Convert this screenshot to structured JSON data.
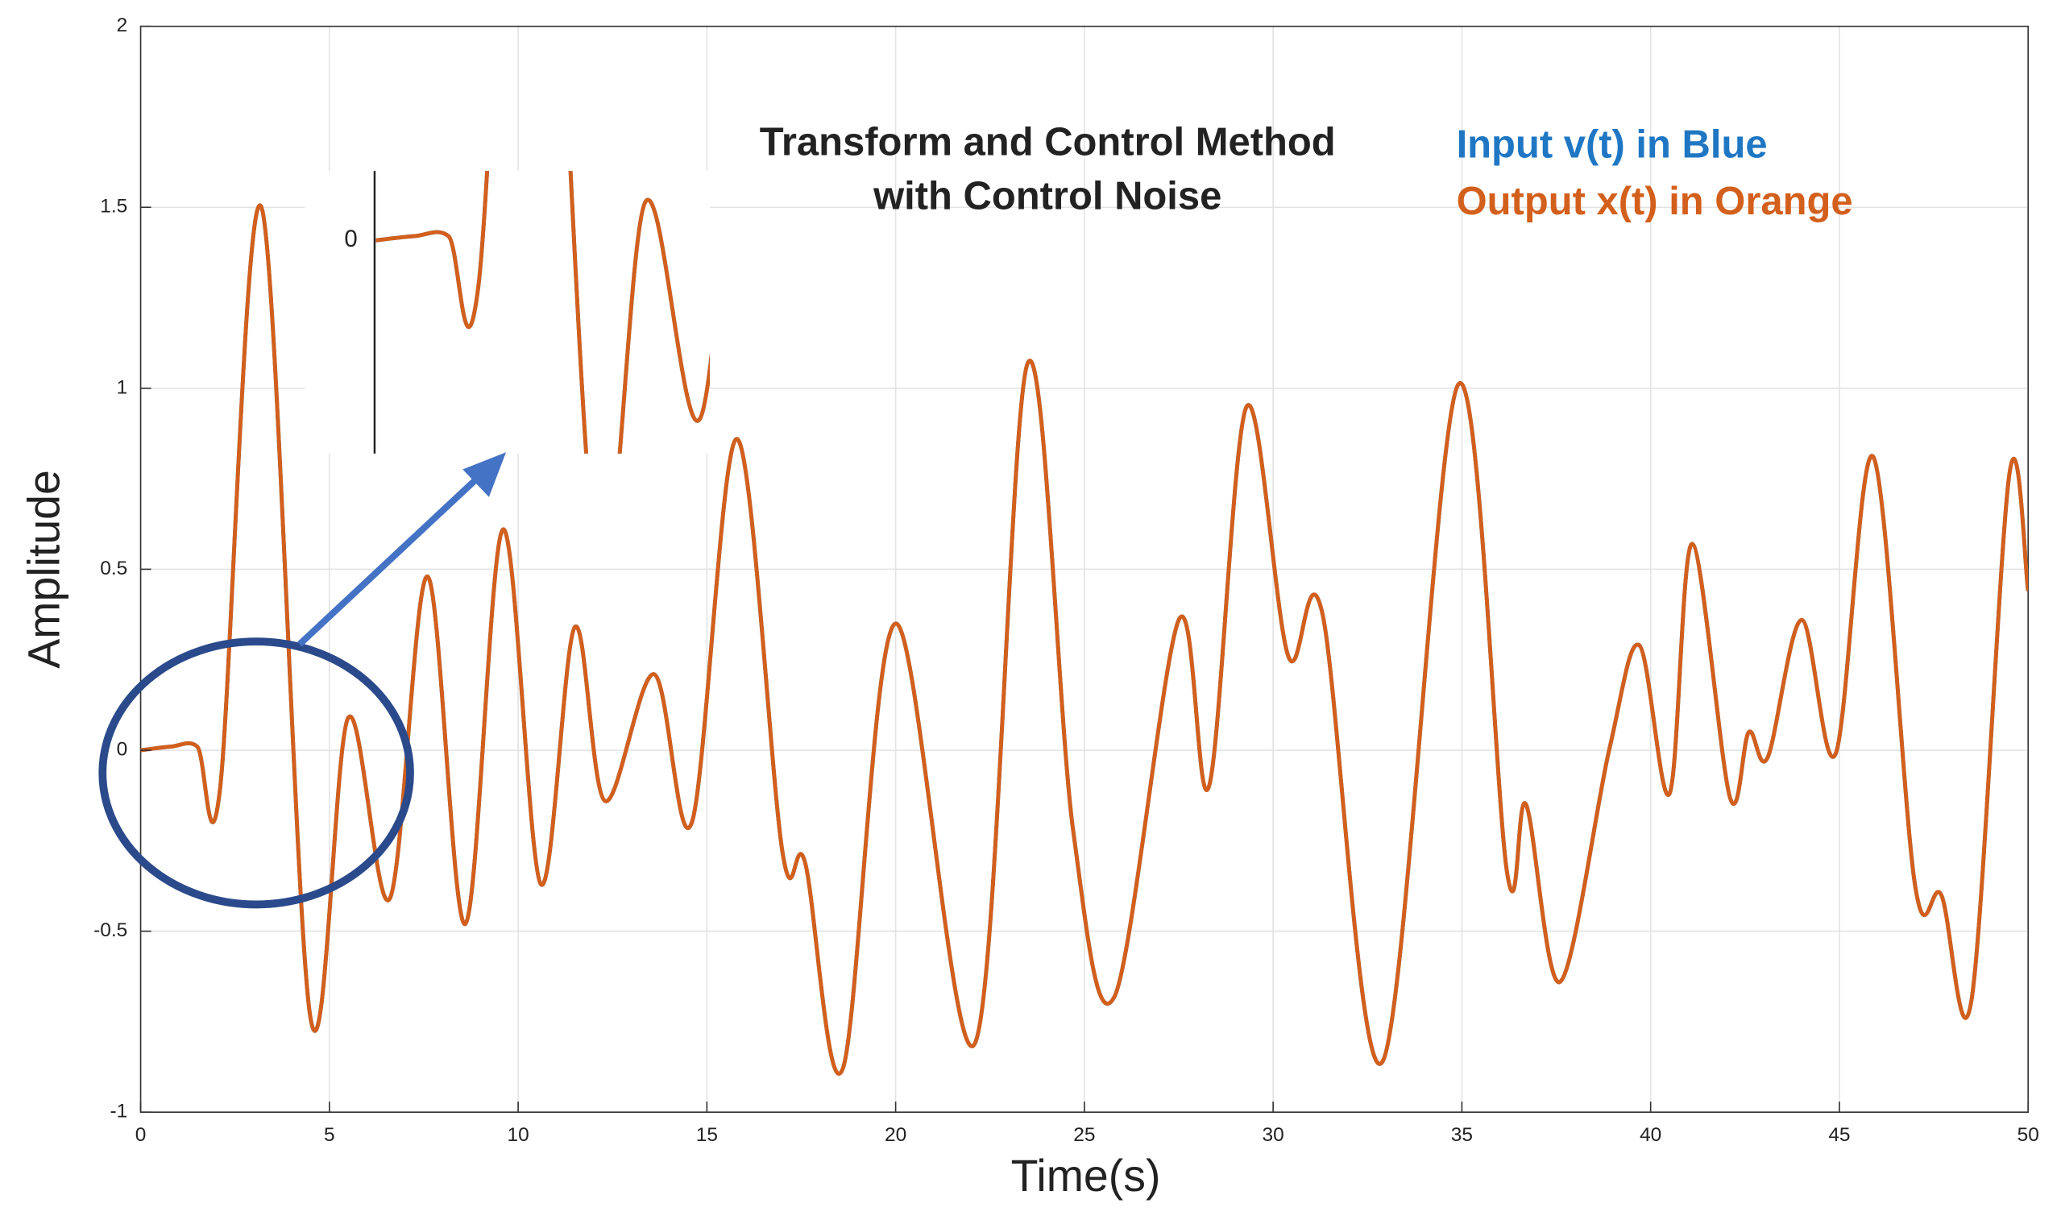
{
  "chart_data": {
    "type": "line",
    "title": [
      "Transform and Control Method",
      "with Control Noise"
    ],
    "x_label": "Time(s)",
    "y_label": "Amplitude",
    "xlim": [
      0,
      50
    ],
    "ylim": [
      -1,
      2
    ],
    "xticks": [
      0,
      5,
      10,
      15,
      20,
      25,
      30,
      35,
      40,
      45,
      50
    ],
    "yticks": [
      -1,
      -0.5,
      0,
      0.5,
      1,
      1.5,
      2
    ],
    "grid": true,
    "x": [
      0,
      0.8,
      1.5,
      2.1,
      3.2,
      4.5,
      5.5,
      6.6,
      7.6,
      8.6,
      9.6,
      10.6,
      11.5,
      12.3,
      13.6,
      14.6,
      15.8,
      17.0,
      17.6,
      18.6,
      20.0,
      22.1,
      23.5,
      24.7,
      25.8,
      27.5,
      28.3,
      29.3,
      30.4,
      31.3,
      32.9,
      34.9,
      36.2,
      36.7,
      37.6,
      38.9,
      39.7,
      40.5,
      41.1,
      42.1,
      42.6,
      43.1,
      44.0,
      44.9,
      45.9,
      47.0,
      47.7,
      48.5,
      49.5,
      50
    ],
    "series": [
      {
        "name": "Input v(t) in Blue",
        "color": "#1f77c4",
        "values": [
          0,
          0.01,
          0.01,
          -0.11,
          1.5,
          -0.74,
          0.09,
          -0.41,
          0.48,
          -0.48,
          0.61,
          -0.37,
          0.34,
          -0.14,
          0.21,
          -0.2,
          0.86,
          -0.28,
          -0.31,
          -0.88,
          0.35,
          -0.81,
          1.07,
          -0.22,
          -0.68,
          0.36,
          -0.1,
          0.95,
          0.26,
          0.38,
          -0.86,
          1.01,
          -0.34,
          -0.15,
          -0.64,
          0.0,
          0.29,
          -0.12,
          0.57,
          -0.13,
          0.05,
          -0.02,
          0.36,
          -0.01,
          0.81,
          -0.37,
          -0.4,
          -0.69,
          0.76,
          0.44
        ]
      },
      {
        "name": "Output x(t) in Orange",
        "color": "#d35f1c",
        "values": [
          0,
          0.01,
          0.01,
          -0.11,
          1.5,
          -0.74,
          0.09,
          -0.41,
          0.48,
          -0.48,
          0.61,
          -0.37,
          0.34,
          -0.14,
          0.21,
          -0.2,
          0.86,
          -0.28,
          -0.31,
          -0.88,
          0.35,
          -0.81,
          1.07,
          -0.22,
          -0.68,
          0.36,
          -0.1,
          0.95,
          0.26,
          0.38,
          -0.86,
          1.01,
          -0.34,
          -0.15,
          -0.64,
          0.0,
          0.29,
          -0.12,
          0.57,
          -0.13,
          0.05,
          -0.02,
          0.36,
          -0.01,
          0.81,
          -0.37,
          -0.4,
          -0.69,
          0.76,
          0.44
        ]
      }
    ],
    "inset": {
      "xlim": [
        0,
        6.8
      ],
      "ylim": [
        -0.49,
        0.16
      ],
      "yticks": [
        0
      ]
    }
  }
}
